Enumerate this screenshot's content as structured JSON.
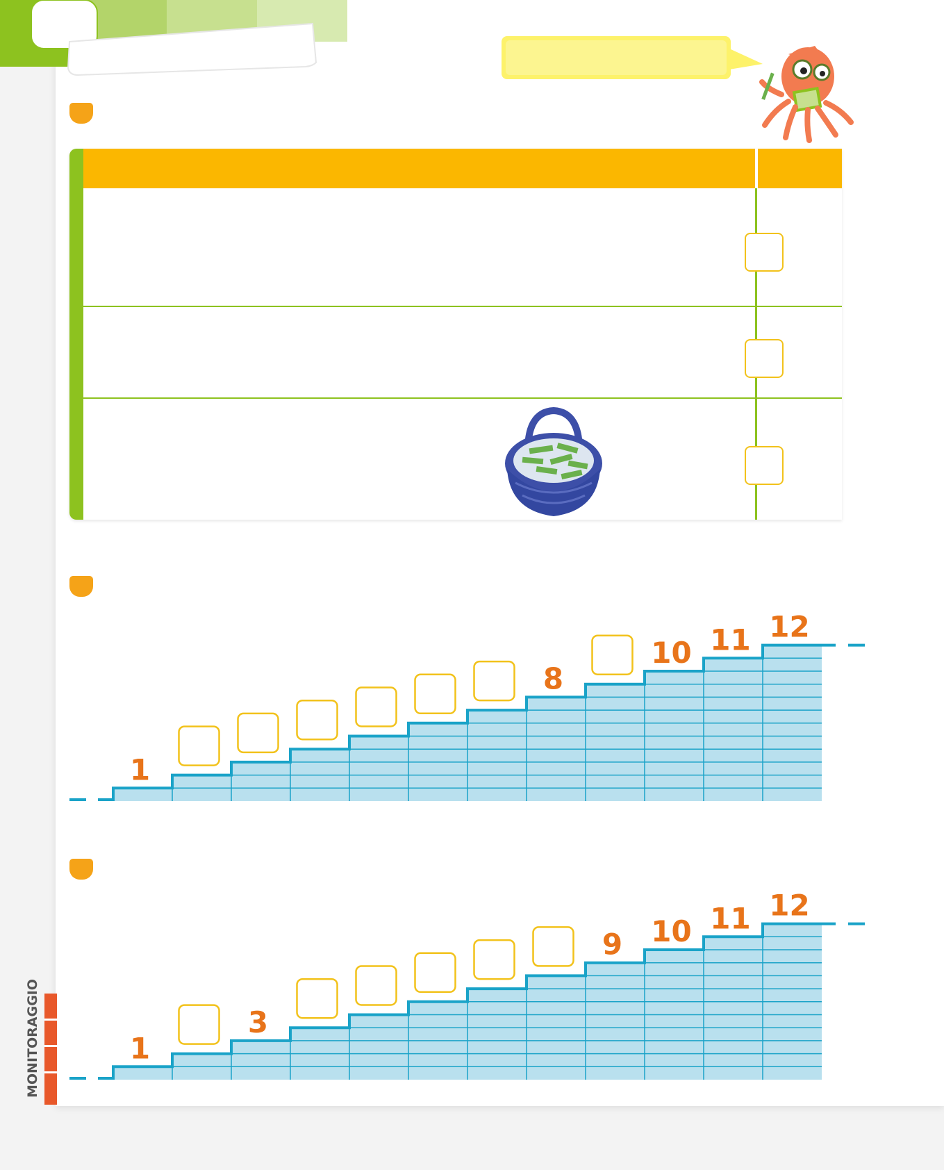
{
  "sidebar": {
    "section_label": "MONITORAGGIO"
  },
  "icons": {
    "header": "torn-tape-header-icon",
    "mascot": "octopus-reading-icon",
    "bubble": "speech-bubble-icon",
    "basket": "basket-of-pencils-icon"
  },
  "colors": {
    "marker": "#f5a318",
    "table_header": "#fbb700",
    "table_accent": "#8dc21f",
    "answer_box": "#f2c21b",
    "stair_fill": "#b9e0ee",
    "stair_line": "#1aa3c8",
    "number": "#e8741a"
  },
  "table": {
    "rows": 3
  },
  "staircases": [
    {
      "steps": 12,
      "labels": [
        "1",
        "",
        "",
        "",
        "",
        "",
        "",
        "8",
        "",
        "10",
        "11",
        "12"
      ]
    },
    {
      "steps": 12,
      "labels": [
        "1",
        "",
        "3",
        "",
        "",
        "",
        "",
        "",
        "9",
        "10",
        "11",
        "12"
      ]
    }
  ]
}
